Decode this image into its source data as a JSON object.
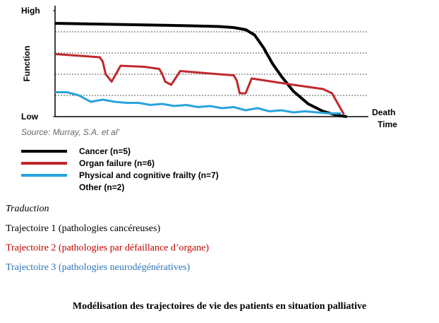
{
  "chart_data": {
    "type": "line",
    "y_label": "Function",
    "x_label": "Time",
    "x_end_label": "Death",
    "source": "Source: Murray, S.A. et al'",
    "xlim": [
      0,
      100
    ],
    "ylim": [
      0,
      100
    ],
    "yticks": [
      {
        "value": 0,
        "label": "Low"
      },
      {
        "value": 100,
        "label": "High"
      }
    ],
    "series": [
      {
        "name": "Cancer (n=5)",
        "color": "#000000",
        "width": 4,
        "x": [
          0,
          20,
          40,
          55,
          60,
          64,
          67,
          70,
          73,
          76,
          80,
          85,
          90,
          95,
          98
        ],
        "values": [
          88,
          87,
          86,
          85,
          84,
          82,
          77,
          65,
          50,
          38,
          24,
          12,
          5,
          1,
          0
        ]
      },
      {
        "name": "Organ failure (n=6)",
        "color": "#c0282d",
        "width": 3,
        "x": [
          0,
          15,
          16,
          17,
          19,
          22,
          30,
          35,
          36,
          37,
          39,
          42,
          55,
          60,
          61,
          62,
          64,
          66,
          80,
          90,
          93,
          95,
          97
        ],
        "values": [
          59,
          56,
          52,
          40,
          33,
          48,
          47,
          45,
          40,
          33,
          30,
          43,
          40,
          39,
          34,
          22,
          22,
          36,
          30,
          26,
          22,
          12,
          2
        ]
      },
      {
        "name": "Physical and cognitive frailty (n=7)",
        "color": "#29a3dd",
        "width": 3,
        "x": [
          0,
          4,
          8,
          12,
          16,
          20,
          24,
          28,
          32,
          36,
          40,
          44,
          48,
          52,
          56,
          60,
          64,
          68,
          72,
          76,
          80,
          84,
          88,
          92,
          96
        ],
        "values": [
          23,
          23,
          20,
          14,
          16,
          14,
          13,
          13,
          11,
          12,
          10,
          11,
          9,
          10,
          8,
          9,
          6,
          8,
          5,
          6,
          4,
          5,
          4,
          3,
          3
        ]
      },
      {
        "name": "Other (n=2)",
        "color": null,
        "x": [],
        "values": []
      }
    ]
  },
  "translation": {
    "heading": "Traduction",
    "lines": [
      {
        "text": "Trajectoire 1 (pathologies cancéreuses)",
        "color": "#000000"
      },
      {
        "text": "Trajectoire 2 (pathologies par défaillance d’organe)",
        "color": "#c00000"
      },
      {
        "text": "Trajectoire 3 (pathologies neurodégénératives)",
        "color": "#2e75b6"
      }
    ]
  },
  "caption": "Modélisation des trajectoires de vie des patients en situation palliative"
}
